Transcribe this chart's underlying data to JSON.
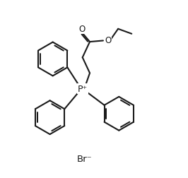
{
  "bg_color": "#ffffff",
  "line_color": "#1a1a1a",
  "line_width": 1.5,
  "fig_width": 2.66,
  "fig_height": 2.53,
  "dpi": 100,
  "br_label": "Br⁻",
  "p_label": "P⁺",
  "o1_label": "O",
  "o2_label": "O",
  "font_size_atoms": 8.5,
  "font_size_br": 9.5
}
